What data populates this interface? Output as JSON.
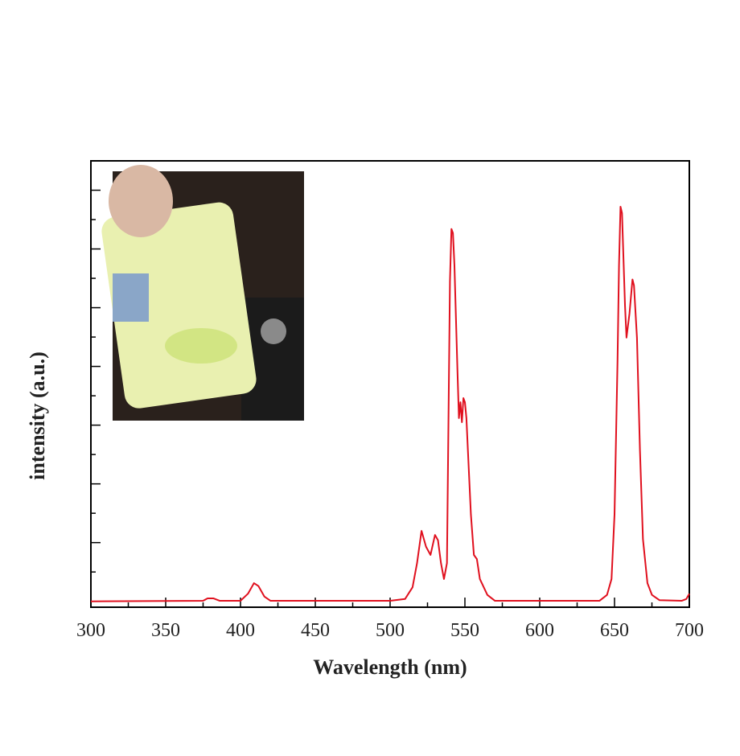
{
  "chart_data": {
    "type": "line",
    "xlabel": "Wavelength (nm)",
    "ylabel": "intensity (a.u.)",
    "xlim": [
      300,
      700
    ],
    "xticks": [
      300,
      350,
      400,
      450,
      500,
      550,
      600,
      650,
      700
    ],
    "xticks_minor": [
      325,
      375,
      425,
      475,
      525,
      575,
      625,
      675
    ],
    "ylim": [
      -0.1,
      7.5
    ],
    "yticks": [
      1,
      2,
      3,
      4,
      5,
      6,
      7
    ],
    "yticks_minor": [
      0.5,
      1.5,
      2.5,
      3.5,
      4.5,
      5.5,
      6.5,
      7.5
    ],
    "series": [
      {
        "color": "#e0101e",
        "x": [
          300,
          375,
          378,
          382,
          386,
          400,
          405,
          409,
          412,
          416,
          420,
          500,
          510,
          515,
          518,
          521,
          524,
          527,
          530,
          532,
          534,
          536,
          538,
          540,
          541,
          542,
          543,
          545,
          546,
          547,
          548,
          549,
          550,
          551,
          552,
          554,
          556,
          558,
          560,
          565,
          570,
          640,
          645,
          648,
          650,
          652,
          653,
          654,
          655,
          657,
          658,
          660,
          662,
          663,
          665,
          667,
          669,
          672,
          675,
          680,
          695,
          698,
          700
        ],
        "values": [
          0,
          0.01,
          0.05,
          0.05,
          0.01,
          0.01,
          0.13,
          0.31,
          0.26,
          0.08,
          0.01,
          0.01,
          0.04,
          0.24,
          0.65,
          1.2,
          0.93,
          0.79,
          1.13,
          1.04,
          0.65,
          0.38,
          0.65,
          5.45,
          6.34,
          6.27,
          5.72,
          3.94,
          3.12,
          3.39,
          3.05,
          3.46,
          3.39,
          3.12,
          2.57,
          1.48,
          0.79,
          0.72,
          0.38,
          0.11,
          0.01,
          0.01,
          0.11,
          0.38,
          1.48,
          4.08,
          5.72,
          6.72,
          6.61,
          5.04,
          4.49,
          4.9,
          5.48,
          5.38,
          4.49,
          2.57,
          1.06,
          0.31,
          0.11,
          0.02,
          0.01,
          0.04,
          0.13
        ]
      }
    ]
  }
}
